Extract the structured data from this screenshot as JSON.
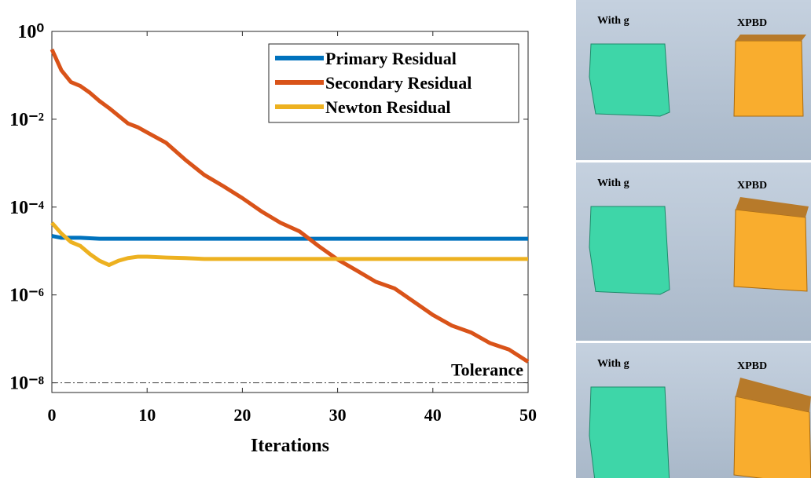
{
  "chart_data": {
    "type": "line",
    "xlabel": "Iterations",
    "x": [
      0,
      1,
      2,
      3,
      4,
      5,
      6,
      7,
      8,
      9,
      10,
      12,
      14,
      16,
      18,
      20,
      22,
      24,
      26,
      28,
      30,
      32,
      34,
      36,
      38,
      40,
      42,
      44,
      46,
      48,
      50
    ],
    "series": [
      {
        "name": "Primary Residual",
        "color": "#0072bd",
        "values": [
          2.2e-05,
          2e-05,
          2e-05,
          2e-05,
          1.95e-05,
          1.9e-05,
          1.9e-05,
          1.9e-05,
          1.9e-05,
          1.9e-05,
          1.9e-05,
          1.9e-05,
          1.9e-05,
          1.9e-05,
          1.9e-05,
          1.9e-05,
          1.9e-05,
          1.9e-05,
          1.9e-05,
          1.9e-05,
          1.9e-05,
          1.9e-05,
          1.9e-05,
          1.9e-05,
          1.9e-05,
          1.9e-05,
          1.9e-05,
          1.9e-05,
          1.9e-05,
          1.9e-05,
          1.9e-05
        ]
      },
      {
        "name": "Secondary Residual",
        "color": "#d95319",
        "values": [
          0.39,
          0.13,
          0.07,
          0.057,
          0.04,
          0.026,
          0.018,
          0.012,
          0.008,
          0.0066,
          0.005,
          0.0029,
          0.0012,
          0.00054,
          0.0003,
          0.00016,
          8e-05,
          4.4e-05,
          2.8e-05,
          1.3e-05,
          6.4e-06,
          3.6e-06,
          2e-06,
          1.4e-06,
          7e-07,
          3.5e-07,
          2e-07,
          1.4e-07,
          8e-08,
          5.7e-08,
          3e-08
        ]
      },
      {
        "name": "Newton Residual",
        "color": "#edb120",
        "values": [
          4.4e-05,
          2.5e-05,
          1.6e-05,
          1.3e-05,
          8.5e-06,
          6e-06,
          4.8e-06,
          6e-06,
          6.9e-06,
          7.4e-06,
          7.4e-06,
          7.1e-06,
          6.9e-06,
          6.6e-06,
          6.6e-06,
          6.6e-06,
          6.6e-06,
          6.6e-06,
          6.6e-06,
          6.6e-06,
          6.6e-06,
          6.6e-06,
          6.6e-06,
          6.6e-06,
          6.6e-06,
          6.6e-06,
          6.6e-06,
          6.6e-06,
          6.6e-06,
          6.6e-06,
          6.6e-06
        ]
      }
    ],
    "xlim": [
      0,
      50
    ],
    "xticks": [
      0,
      10,
      20,
      30,
      40,
      50
    ],
    "ylim": [
      6e-09,
      1
    ],
    "log_y": true,
    "yticks": [
      {
        "value": 1,
        "label": "10⁰"
      },
      {
        "value": 0.01,
        "label": "10⁻²"
      },
      {
        "value": 0.0001,
        "label": "10⁻⁴"
      },
      {
        "value": 1e-06,
        "label": "10⁻⁶"
      },
      {
        "value": 1e-08,
        "label": "10⁻⁸"
      }
    ],
    "tolerance": {
      "value": 1e-08,
      "label": "Tolerance"
    },
    "legend": "upper right"
  },
  "panels": [
    {
      "left": "With g",
      "right": "XPBD"
    },
    {
      "left": "With g",
      "right": "XPBD"
    },
    {
      "left": "With g",
      "right": "XPBD"
    }
  ]
}
